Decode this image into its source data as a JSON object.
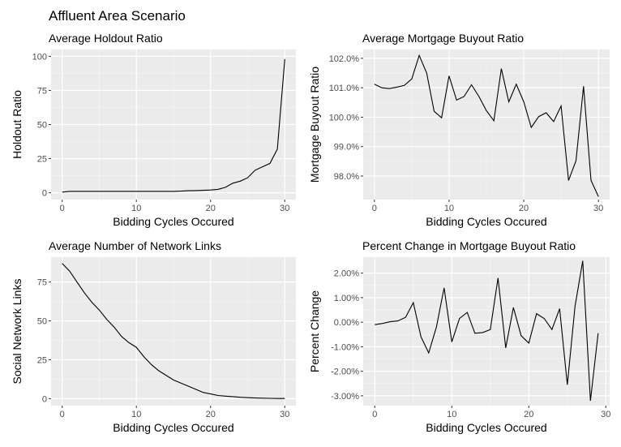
{
  "figure": {
    "title": "Affluent Area Scenario"
  },
  "chart_data": [
    {
      "type": "line",
      "title": "Average Holdout Ratio",
      "xlabel": "Bidding Cycles Occured",
      "ylabel": "Holdout Ratio",
      "xlim": [
        -1.5,
        31.5
      ],
      "ylim": [
        -5,
        105
      ],
      "xticks": [
        0,
        10,
        20,
        30
      ],
      "yticks": [
        0,
        25,
        50,
        75,
        100
      ],
      "ytick_labels": [
        "0",
        "25",
        "50",
        "75",
        "100"
      ],
      "x": [
        0,
        1,
        2,
        3,
        4,
        5,
        6,
        7,
        8,
        9,
        10,
        11,
        12,
        13,
        14,
        15,
        16,
        17,
        18,
        19,
        20,
        21,
        22,
        23,
        24,
        25,
        26,
        27,
        28,
        29,
        30
      ],
      "values": [
        0.5,
        1,
        1,
        1,
        1,
        1,
        1,
        1,
        1,
        1,
        1,
        1,
        1,
        1,
        1,
        1,
        1.2,
        1.5,
        1.6,
        1.8,
        2,
        2.5,
        4,
        7,
        8.5,
        11,
        16.5,
        19,
        21.5,
        32,
        98
      ]
    },
    {
      "type": "line",
      "title": "Average Mortgage Buyout Ratio",
      "xlabel": "Bidding Cycles Occured",
      "ylabel": "Mortgage Buyout Ratio",
      "xlim": [
        -1.5,
        31.5
      ],
      "ylim": [
        97.2,
        102.3
      ],
      "xticks": [
        0,
        10,
        20,
        30
      ],
      "yticks": [
        98,
        99,
        100,
        101,
        102
      ],
      "ytick_labels": [
        "98.0%",
        "99.0%",
        "100.0%",
        "101.0%",
        "102.0%"
      ],
      "x": [
        0,
        1,
        2,
        3,
        4,
        5,
        6,
        7,
        8,
        9,
        10,
        11,
        12,
        13,
        14,
        15,
        16,
        17,
        18,
        19,
        20,
        21,
        22,
        23,
        24,
        25,
        26,
        27,
        28,
        29,
        30
      ],
      "values": [
        101.12,
        101.0,
        100.97,
        101.02,
        101.08,
        101.3,
        102.1,
        101.5,
        100.2,
        99.98,
        101.4,
        100.58,
        100.7,
        101.1,
        100.7,
        100.22,
        99.88,
        101.65,
        100.52,
        101.12,
        100.52,
        99.65,
        100.02,
        100.15,
        99.85,
        100.38,
        97.85,
        98.52,
        101.05,
        97.85,
        97.3
      ]
    },
    {
      "type": "line",
      "title": "Average Number of Network Links",
      "xlabel": "Bidding Cycles Occured",
      "ylabel": "Social Network Links",
      "xlim": [
        -1.5,
        31.5
      ],
      "ylim": [
        -4.5,
        91
      ],
      "xticks": [
        0,
        10,
        20,
        30
      ],
      "yticks": [
        0,
        25,
        50,
        75
      ],
      "ytick_labels": [
        "0",
        "25",
        "50",
        "75"
      ],
      "x": [
        0,
        1,
        2,
        3,
        4,
        5,
        6,
        7,
        8,
        9,
        10,
        11,
        12,
        13,
        14,
        15,
        16,
        17,
        18,
        19,
        20,
        21,
        22,
        23,
        24,
        25,
        26,
        27,
        28,
        29,
        30
      ],
      "values": [
        87,
        82,
        75,
        68,
        62,
        57,
        51,
        46,
        40,
        36,
        33,
        27,
        22,
        18,
        15,
        12,
        10,
        8,
        6,
        4,
        3,
        2,
        1.6,
        1.3,
        0.9,
        0.6,
        0.4,
        0.3,
        0.2,
        0.1,
        0.1
      ]
    },
    {
      "type": "line",
      "title": "Percent Change in Mortgage Buyout Ratio",
      "xlabel": "Bidding Cycles Occured",
      "ylabel": "Percent Change",
      "xlim": [
        -1.5,
        30.5
      ],
      "ylim": [
        -3.4,
        2.65
      ],
      "xticks": [
        0,
        10,
        20,
        30
      ],
      "yticks": [
        -3,
        -2,
        -1,
        0,
        1,
        2
      ],
      "ytick_labels": [
        "-3.00%",
        "-2.00%",
        "-1.00%",
        "0.00%",
        "1.00%",
        "2.00%"
      ],
      "x": [
        0,
        1,
        2,
        3,
        4,
        5,
        6,
        7,
        8,
        9,
        10,
        11,
        12,
        13,
        14,
        15,
        16,
        17,
        18,
        19,
        20,
        21,
        22,
        23,
        24,
        25,
        26,
        27,
        28,
        29
      ],
      "values": [
        -0.1,
        -0.05,
        0.02,
        0.05,
        0.2,
        0.8,
        -0.6,
        -1.25,
        -0.2,
        1.4,
        -0.8,
        0.15,
        0.4,
        -0.45,
        -0.42,
        -0.3,
        1.8,
        -1.05,
        0.6,
        -0.55,
        -0.85,
        0.35,
        0.15,
        -0.3,
        0.55,
        -2.55,
        0.65,
        2.5,
        -3.2,
        -0.45
      ]
    }
  ]
}
